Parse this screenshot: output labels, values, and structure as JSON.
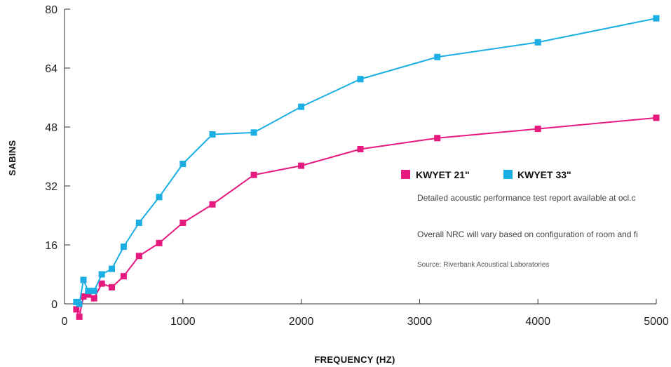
{
  "chart_data": {
    "type": "line",
    "title": "",
    "xlabel": "FREQUENCY (HZ)",
    "ylabel": "SABINS",
    "xlim": [
      0,
      5000
    ],
    "ylim": [
      0,
      80
    ],
    "x_ticks": [
      0,
      1000,
      2000,
      3000,
      4000,
      5000
    ],
    "y_ticks": [
      0,
      16,
      32,
      48,
      64,
      80
    ],
    "grid": false,
    "legend_position": "right-middle",
    "series": [
      {
        "name": "KWYET 21\"",
        "color": "#e6197f",
        "points": [
          [
            100,
            -1.5
          ],
          [
            125,
            -3.5
          ],
          [
            160,
            2
          ],
          [
            200,
            2.5
          ],
          [
            250,
            1.5
          ],
          [
            315,
            5.5
          ],
          [
            400,
            4.5
          ],
          [
            500,
            7.5
          ],
          [
            630,
            13
          ],
          [
            800,
            16.5
          ],
          [
            1000,
            22
          ],
          [
            1250,
            27
          ],
          [
            1600,
            35
          ],
          [
            2000,
            37.5
          ],
          [
            2500,
            42
          ],
          [
            3150,
            45
          ],
          [
            4000,
            47.5
          ],
          [
            5000,
            50.5
          ]
        ]
      },
      {
        "name": "KWYET 33\"",
        "color": "#1aaee3",
        "points": [
          [
            100,
            0.5
          ],
          [
            125,
            0
          ],
          [
            160,
            6.5
          ],
          [
            200,
            3.5
          ],
          [
            250,
            3.5
          ],
          [
            315,
            8
          ],
          [
            400,
            9.5
          ],
          [
            500,
            15.5
          ],
          [
            630,
            22
          ],
          [
            800,
            29
          ],
          [
            1000,
            38
          ],
          [
            1250,
            46
          ],
          [
            1600,
            46.5
          ],
          [
            2000,
            53.5
          ],
          [
            2500,
            61
          ],
          [
            3150,
            67
          ],
          [
            4000,
            71
          ],
          [
            5000,
            77.5
          ]
        ]
      }
    ],
    "annotations": [
      "Detailed acoustic performance test report available at ocl.c",
      "Overall NRC will vary based on configuration of room and fi",
      "Source: Riverbank Acoustical Laboratories"
    ]
  }
}
